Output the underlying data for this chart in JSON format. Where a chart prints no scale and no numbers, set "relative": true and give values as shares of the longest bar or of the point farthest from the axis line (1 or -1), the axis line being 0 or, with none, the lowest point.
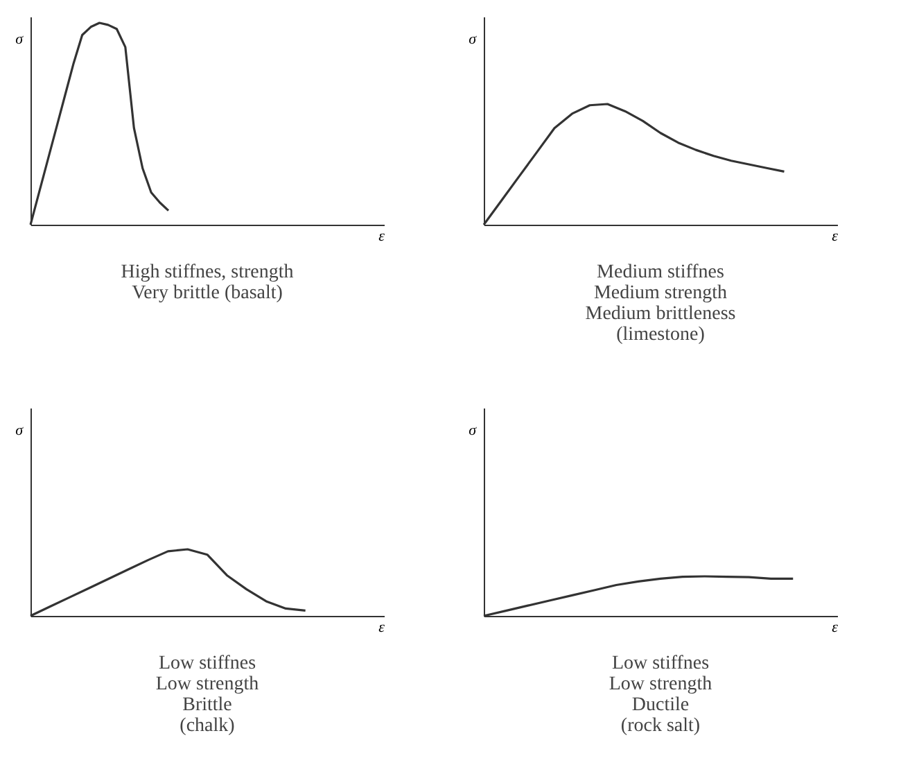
{
  "chart_data": [
    {
      "type": "line",
      "relative": true,
      "xlabel": "ε",
      "ylabel": "σ",
      "tick_labels": false,
      "grid": false,
      "line_style": "solid",
      "categories": [
        null,
        null,
        null,
        null,
        null,
        null,
        null,
        null,
        null,
        null,
        null,
        null,
        null,
        null,
        null,
        null,
        null,
        null,
        null,
        null,
        null,
        null,
        null,
        null,
        null,
        null,
        null,
        null,
        null,
        null,
        null,
        null,
        null,
        null,
        null,
        null,
        null,
        null,
        null,
        null,
        null,
        null
      ],
      "series": [
        {
          "color": "#333333",
          "values": [
            0,
            0.16,
            0.32,
            0.48,
            0.64,
            0.8,
            0.94,
            0.98,
            1,
            0.99,
            0.97,
            0.88,
            0.48,
            0.28,
            0.16,
            0.11,
            0.07,
            null,
            null,
            null,
            null,
            null,
            null,
            null,
            null,
            null,
            null,
            null,
            null,
            null,
            null,
            null,
            null,
            null,
            null,
            null,
            null,
            null,
            null,
            null,
            null,
            null
          ]
        }
      ],
      "annotations": [
        "High stiffnes, strength",
        "Very brittle (basalt)"
      ]
    },
    {
      "type": "line",
      "relative": true,
      "xlabel": "ε",
      "ylabel": "σ",
      "tick_labels": false,
      "grid": false,
      "line_style": "solid",
      "categories": [
        null,
        null,
        null,
        null,
        null,
        null,
        null,
        null,
        null,
        null,
        null,
        null,
        null,
        null,
        null,
        null,
        null,
        null,
        null,
        null,
        null
      ],
      "series": [
        {
          "color": "#333333",
          "values": [
            0,
            0.2,
            0.4,
            0.6,
            0.8,
            0.92,
            0.99,
            1,
            0.94,
            0.86,
            0.76,
            0.68,
            0.62,
            0.57,
            0.53,
            0.5,
            0.47,
            0.44,
            null,
            null,
            null
          ]
        }
      ],
      "annotations": [
        "Medium stiffnes",
        "Medium strength",
        "Medium brittleness",
        "(limestone)"
      ]
    },
    {
      "type": "line",
      "relative": true,
      "xlabel": "ε",
      "ylabel": "σ",
      "tick_labels": false,
      "grid": false,
      "line_style": "solid",
      "categories": [
        null,
        null,
        null,
        null,
        null,
        null,
        null,
        null,
        null,
        null,
        null,
        null,
        null,
        null,
        null,
        null,
        null,
        null,
        null
      ],
      "series": [
        {
          "color": "#333333",
          "values": [
            0,
            0.14,
            0.28,
            0.42,
            0.56,
            0.7,
            0.84,
            0.97,
            1,
            0.92,
            0.61,
            0.4,
            0.22,
            0.11,
            0.08,
            null,
            null,
            null,
            null
          ]
        }
      ],
      "annotations": [
        "Low stiffnes",
        "Low strength",
        "Brittle",
        "(chalk)"
      ]
    },
    {
      "type": "line",
      "relative": true,
      "xlabel": "ε",
      "ylabel": "σ",
      "tick_labels": false,
      "grid": false,
      "line_style": "solid",
      "categories": [
        null,
        null,
        null,
        null,
        null,
        null,
        null,
        null,
        null,
        null,
        null,
        null,
        null,
        null,
        null,
        null,
        null
      ],
      "series": [
        {
          "color": "#333333",
          "values": [
            0,
            0.13,
            0.26,
            0.39,
            0.52,
            0.65,
            0.78,
            0.87,
            0.94,
            0.99,
            1,
            0.99,
            0.98,
            0.94,
            0.94,
            null,
            null
          ]
        }
      ],
      "annotations": [
        "Low stiffnes",
        "Low strength",
        "Ductile",
        "(rock salt)"
      ]
    }
  ]
}
